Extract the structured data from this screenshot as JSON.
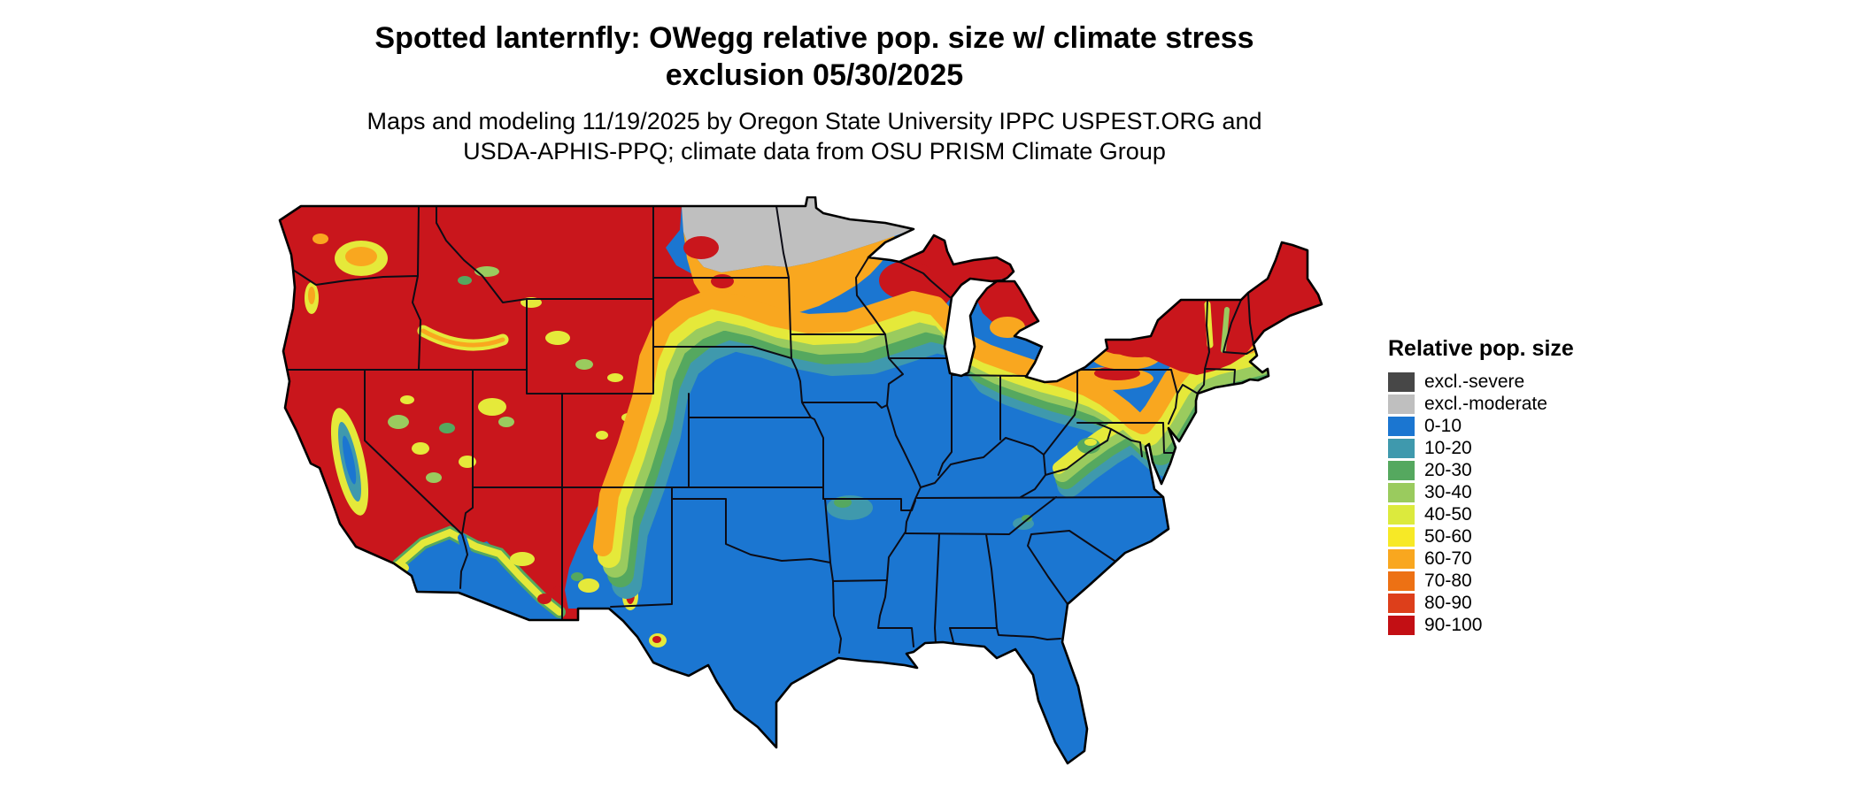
{
  "header": {
    "title_line1": "Spotted lanternfly: OWegg relative pop. size w/ climate stress",
    "title_line2": "exclusion 05/30/2025",
    "subtitle_line1": "Maps and modeling 11/19/2025 by Oregon State University IPPC USPEST.ORG and",
    "subtitle_line2": "USDA-APHIS-PPQ; climate data from OSU PRISM Climate Group"
  },
  "legend": {
    "title": "Relative pop. size",
    "items": [
      {
        "label": "excl.-severe",
        "color": "#474747"
      },
      {
        "label": "excl.-moderate",
        "color": "#bfbfbf"
      },
      {
        "label": "0-10",
        "color": "#1b76d1"
      },
      {
        "label": "10-20",
        "color": "#3f99ad"
      },
      {
        "label": "20-30",
        "color": "#55a85f"
      },
      {
        "label": "30-40",
        "color": "#9acb5e"
      },
      {
        "label": "40-50",
        "color": "#dcea3d"
      },
      {
        "label": "50-60",
        "color": "#f7e926"
      },
      {
        "label": "60-70",
        "color": "#f9a71f"
      },
      {
        "label": "70-80",
        "color": "#ed7114"
      },
      {
        "label": "80-90",
        "color": "#dd3f1b"
      },
      {
        "label": "90-100",
        "color": "#c30f14"
      }
    ]
  },
  "chart_data": {
    "type": "heatmap",
    "title": "Spotted lanternfly: OWegg relative pop. size w/ climate stress exclusion 05/30/2025",
    "legend_title": "Relative pop. size",
    "classes": [
      "excl.-severe",
      "excl.-moderate",
      "0-10",
      "10-20",
      "20-30",
      "30-40",
      "40-50",
      "50-60",
      "60-70",
      "70-80",
      "80-90",
      "90-100"
    ],
    "region": "contiguous United States with state boundaries",
    "regional_pattern": {
      "south_and_southeast": "0-10",
      "southwest_low_deserts": "0-10",
      "california_central_valley": "10-50",
      "mountain_west_and_pacific_northwest": "80-100",
      "northern_plains_and_far_north": "excl.-moderate",
      "midwest_transition_band": "10-80 gradient increasing northward",
      "great_lakes_north_wisconsin_michigan": "80-100",
      "northeast_new_england_upstate_ny": "80-100",
      "appalachian_ridge_finger": "20-60"
    }
  }
}
